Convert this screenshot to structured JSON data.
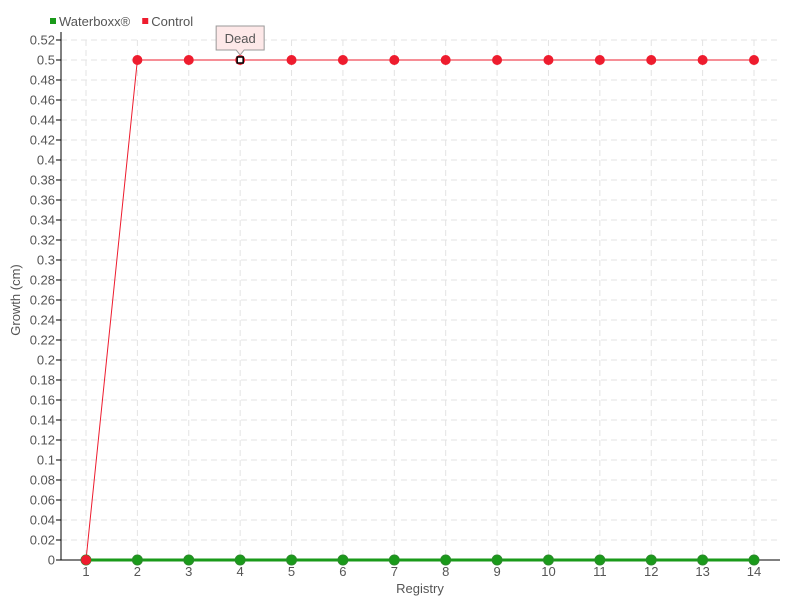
{
  "chart_data": {
    "type": "line",
    "xlabel": "Registry",
    "ylabel": "Growth (cm)",
    "x": [
      1,
      2,
      3,
      4,
      5,
      6,
      7,
      8,
      9,
      10,
      11,
      12,
      13,
      14
    ],
    "ylim": [
      0,
      0.52
    ],
    "ytick_step": 0.02,
    "grid": true,
    "legend_position": "top-left",
    "series": [
      {
        "name": "Waterboxx®",
        "color": "#1a9a1a",
        "values": [
          0,
          0,
          0,
          0,
          0,
          0,
          0,
          0,
          0,
          0,
          0,
          0,
          0,
          0
        ]
      },
      {
        "name": "Control",
        "color": "#ee1c2e",
        "values": [
          0,
          0.5,
          0.5,
          0.5,
          0.5,
          0.5,
          0.5,
          0.5,
          0.5,
          0.5,
          0.5,
          0.5,
          0.5,
          0.5
        ]
      }
    ],
    "tooltip": {
      "series": "Control",
      "x": 4,
      "text": "Dead"
    }
  }
}
